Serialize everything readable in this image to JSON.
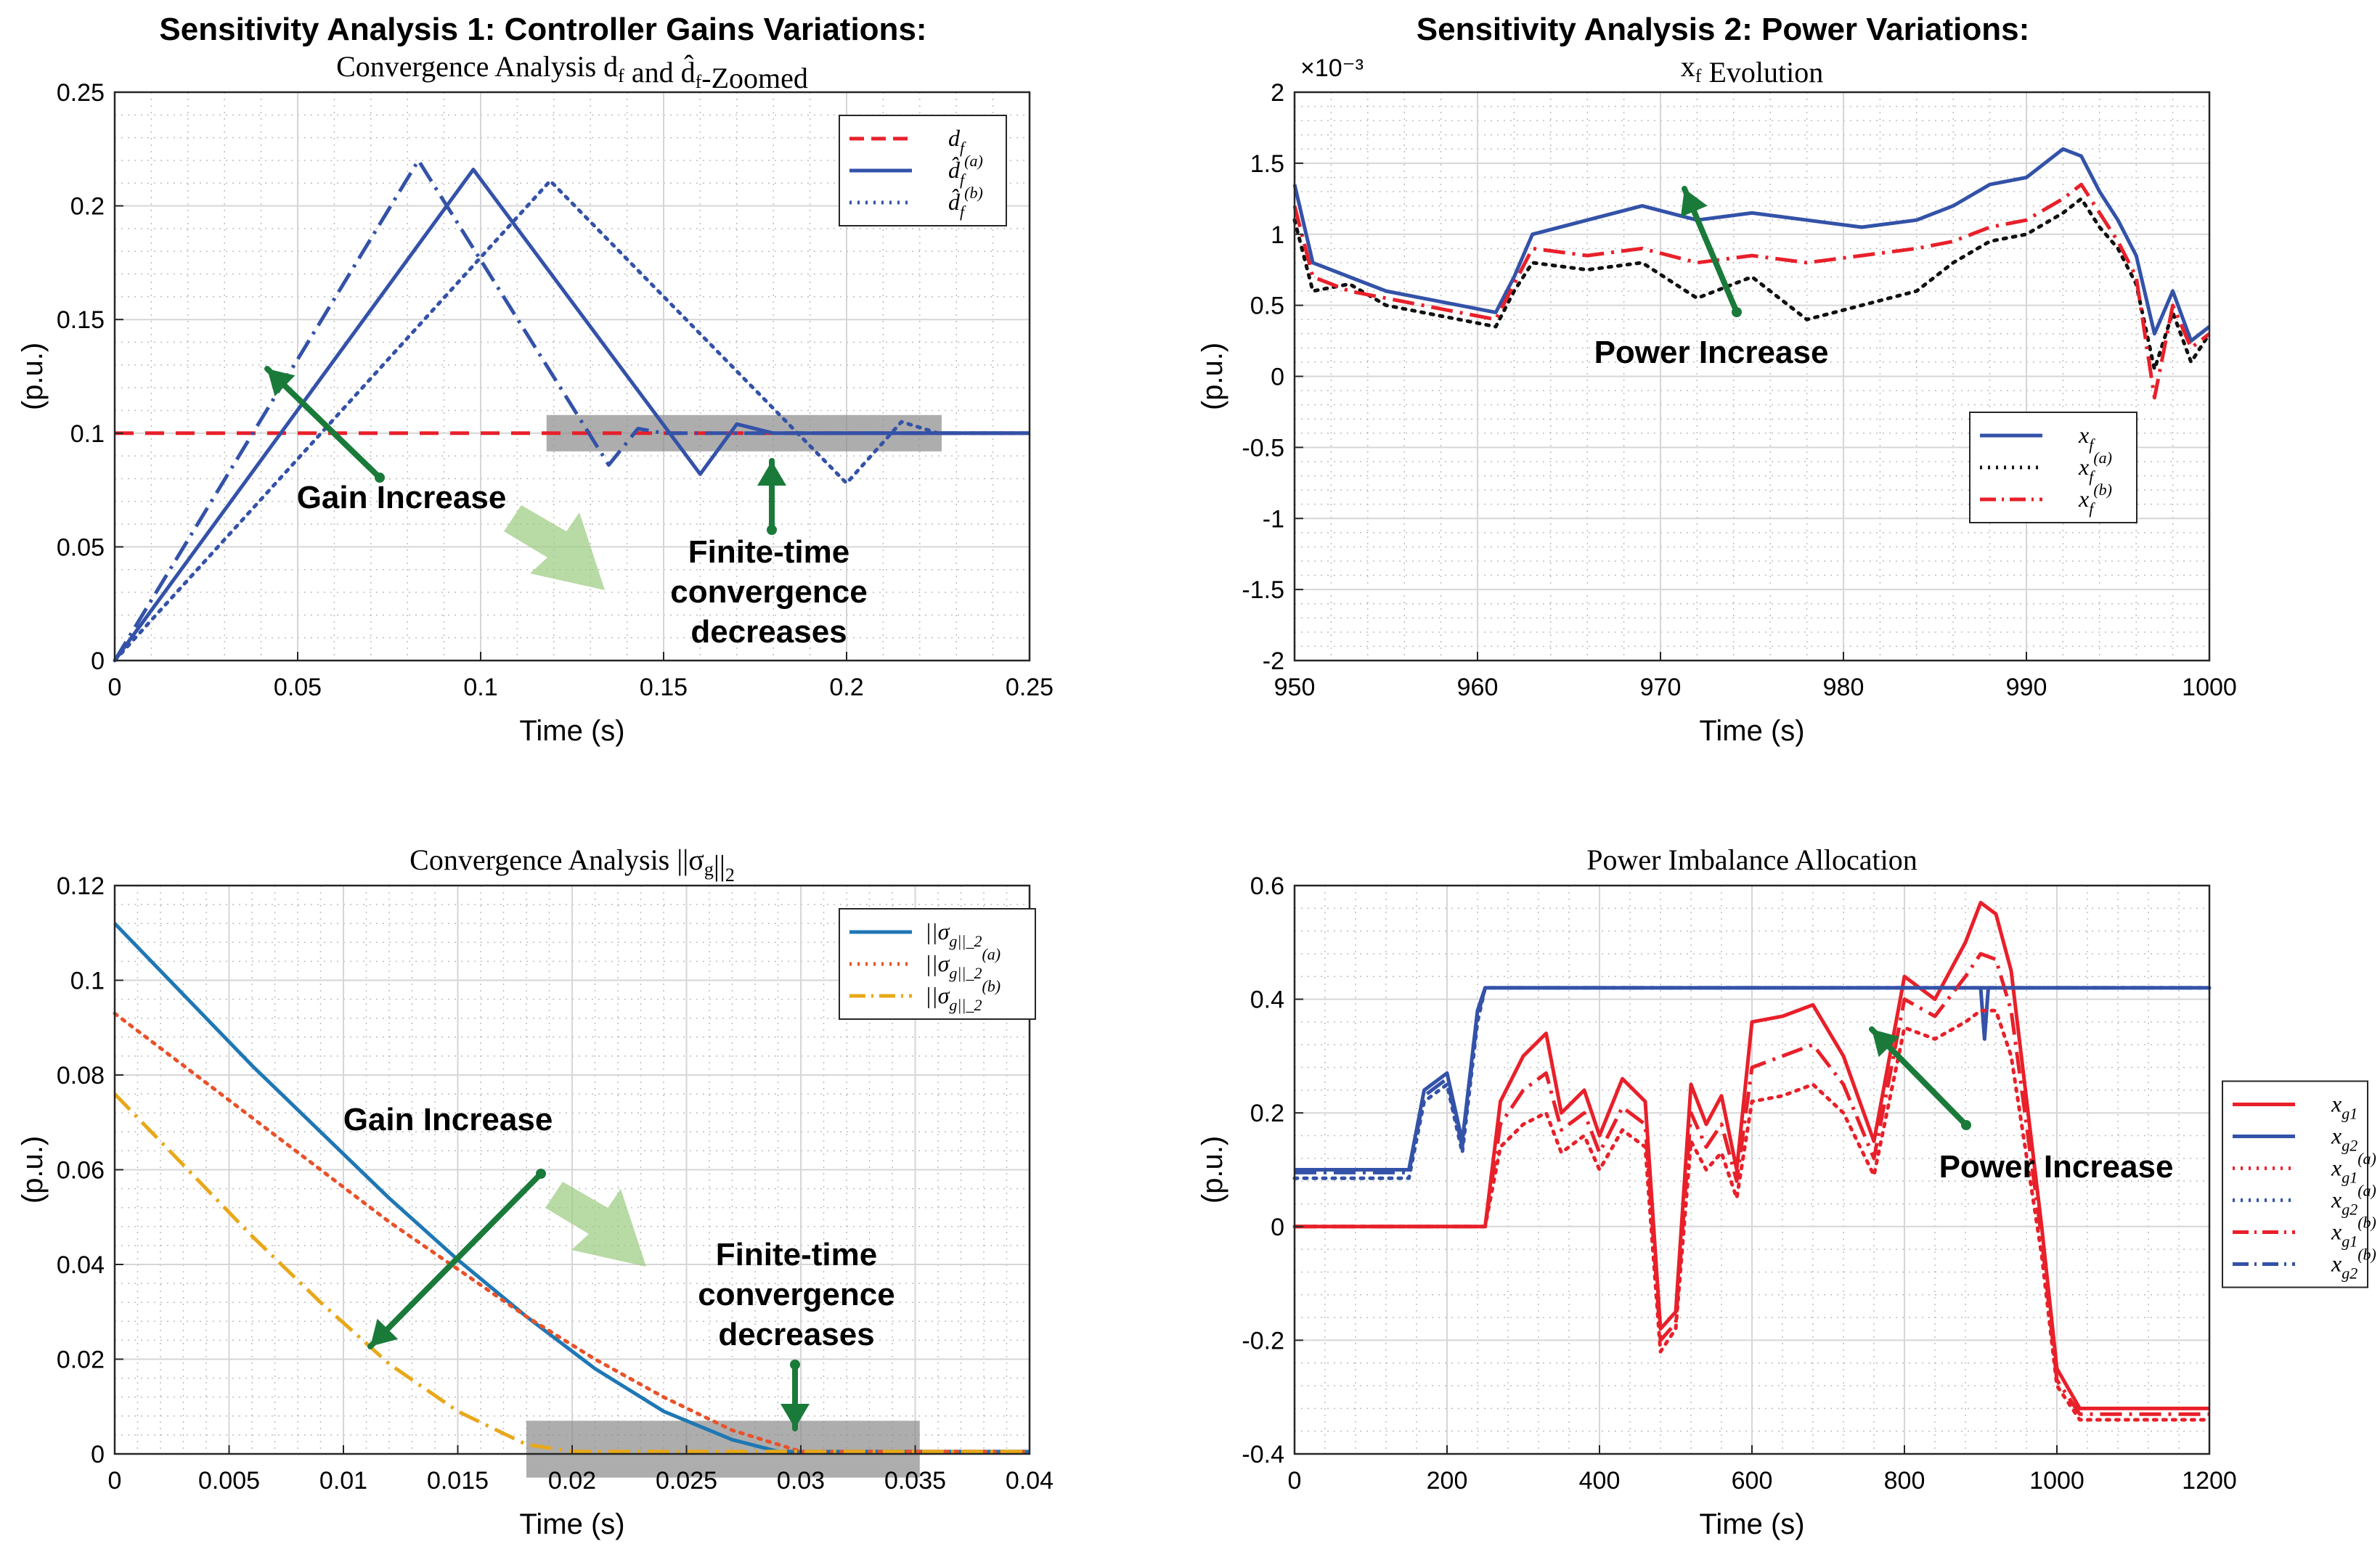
{
  "chart_data": [
    {
      "type": "line",
      "suptitle": "Sensitivity Analysis 1:  Controller Gains Variations:",
      "title": "Convergence Analysis d_f and d̂_f-Zoomed",
      "xlabel": "Time (s)",
      "ylabel": "(p.u.)",
      "xlim": [
        0,
        0.25
      ],
      "ylim": [
        0,
        0.25
      ],
      "xticks": [
        0,
        0.05,
        0.1,
        0.15,
        0.2,
        0.25
      ],
      "xticklabels": [
        "0",
        "0.05",
        "0.1",
        "0.15",
        "0.2",
        "0.25"
      ],
      "yticks": [
        0,
        0.05,
        0.1,
        0.15,
        0.2,
        0.25
      ],
      "yticklabels": [
        "0",
        "0.05",
        "0.1",
        "0.15",
        "0.2",
        "0.25"
      ],
      "grid": true,
      "legend_position": "top-right",
      "series": [
        {
          "name": "d_f",
          "color": "#e8202a",
          "style": "dashed",
          "x": [
            0,
            0.25
          ],
          "y": [
            0.1,
            0.1
          ]
        },
        {
          "name": "d̂_f^(a)",
          "color": "#3352a8",
          "style": "solid",
          "x": [
            0,
            0.098,
            0.16,
            0.17,
            0.18,
            0.25
          ],
          "y": [
            0,
            0.216,
            0.082,
            0.104,
            0.1,
            0.1
          ]
        },
        {
          "name": "d̂_f^(b)",
          "color": "#3352a8",
          "style": "dotted",
          "x": [
            0,
            0.119,
            0.2,
            0.215,
            0.225,
            0.25
          ],
          "y": [
            0,
            0.211,
            0.078,
            0.105,
            0.1,
            0.1
          ]
        },
        {
          "name": "",
          "color": "#3352a8",
          "style": "dashdot",
          "x": [
            0,
            0.083,
            0.135,
            0.143,
            0.15,
            0.25
          ],
          "y": [
            0,
            0.22,
            0.086,
            0.102,
            0.1,
            0.1
          ]
        }
      ],
      "annotations": {
        "gain": "Gain Increase",
        "finite_l1": "Finite-time",
        "finite_l2": "convergence",
        "finite_l3": "decreases"
      }
    },
    {
      "type": "line",
      "suptitle": "Sensitivity Analysis 2:  Power Variations:",
      "title": "x_f Evolution",
      "xlabel": "Time (s)",
      "ylabel": "(p.u.)",
      "scale_label": "×10⁻³",
      "xlim": [
        950,
        1000
      ],
      "ylim": [
        -2,
        2
      ],
      "xticks": [
        950,
        960,
        970,
        980,
        990,
        1000
      ],
      "xticklabels": [
        "950",
        "960",
        "970",
        "980",
        "990",
        "1000"
      ],
      "yticks": [
        -2,
        -1.5,
        -1,
        -0.5,
        0,
        0.5,
        1,
        1.5,
        2
      ],
      "yticklabels": [
        "-2",
        "-1.5",
        "-1",
        "-0.5",
        "0",
        "0.5",
        "1",
        "1.5",
        "2"
      ],
      "grid": true,
      "legend_position": "lower-right",
      "series": [
        {
          "name": "x_f",
          "color": "#3352a8",
          "style": "solid",
          "x": [
            950,
            951,
            953,
            955,
            957,
            959,
            961,
            962,
            963,
            966,
            969,
            972,
            975,
            978,
            981,
            984,
            986,
            988,
            990,
            992,
            993,
            994,
            995,
            996,
            997,
            998,
            999,
            1000
          ],
          "y": [
            1.35,
            0.8,
            0.7,
            0.6,
            0.55,
            0.5,
            0.45,
            0.7,
            1.0,
            1.1,
            1.2,
            1.1,
            1.15,
            1.1,
            1.05,
            1.1,
            1.2,
            1.35,
            1.4,
            1.6,
            1.55,
            1.3,
            1.1,
            0.85,
            0.3,
            0.6,
            0.25,
            0.35
          ]
        },
        {
          "name": "x_f^(a)",
          "color": "#111111",
          "style": "dotted",
          "x": [
            950,
            951,
            953,
            955,
            957,
            959,
            961,
            962,
            963,
            966,
            969,
            972,
            975,
            978,
            981,
            984,
            986,
            988,
            990,
            992,
            993,
            994,
            995,
            996,
            997,
            998,
            999,
            1000
          ],
          "y": [
            1.1,
            0.6,
            0.65,
            0.5,
            0.45,
            0.4,
            0.35,
            0.6,
            0.8,
            0.75,
            0.8,
            0.55,
            0.7,
            0.4,
            0.5,
            0.6,
            0.8,
            0.95,
            1.0,
            1.15,
            1.25,
            1.05,
            0.9,
            0.65,
            0.05,
            0.45,
            0.1,
            0.3
          ]
        },
        {
          "name": "x_f^(b)",
          "color": "#e8202a",
          "style": "dashdot",
          "x": [
            950,
            951,
            953,
            955,
            957,
            959,
            961,
            962,
            963,
            966,
            969,
            972,
            975,
            978,
            981,
            984,
            986,
            988,
            990,
            992,
            993,
            994,
            995,
            996,
            997,
            998,
            999,
            1000
          ],
          "y": [
            1.2,
            0.7,
            0.6,
            0.55,
            0.5,
            0.45,
            0.4,
            0.65,
            0.9,
            0.85,
            0.9,
            0.8,
            0.85,
            0.8,
            0.85,
            0.9,
            0.95,
            1.05,
            1.1,
            1.25,
            1.35,
            1.15,
            0.95,
            0.7,
            -0.15,
            0.5,
            0.2,
            0.3
          ]
        }
      ],
      "annotations": {
        "power": "Power Increase"
      }
    },
    {
      "type": "line",
      "title": "Convergence Analysis ||σ_g||_2",
      "xlabel": "Time (s)",
      "ylabel": "(p.u.)",
      "xlim": [
        0,
        0.04
      ],
      "ylim": [
        0,
        0.12
      ],
      "xticks": [
        0,
        0.005,
        0.01,
        0.015,
        0.02,
        0.025,
        0.03,
        0.035,
        0.04
      ],
      "xticklabels": [
        "0",
        "0.005",
        "0.01",
        "0.015",
        "0.02",
        "0.025",
        "0.03",
        "0.035",
        "0.04"
      ],
      "yticks": [
        0,
        0.02,
        0.04,
        0.06,
        0.08,
        0.1,
        0.12
      ],
      "yticklabels": [
        "0",
        "0.02",
        "0.04",
        "0.06",
        "0.08",
        "0.1",
        "0.12"
      ],
      "grid": true,
      "legend_position": "top-right",
      "series": [
        {
          "name": "||σ_g||_2",
          "color": "#1f77b4",
          "style": "solid",
          "x": [
            0,
            0.003,
            0.006,
            0.009,
            0.012,
            0.015,
            0.018,
            0.021,
            0.024,
            0.027,
            0.029,
            0.04
          ],
          "y": [
            0.112,
            0.097,
            0.082,
            0.068,
            0.054,
            0.041,
            0.029,
            0.018,
            0.009,
            0.003,
            0.0005,
            0.0005
          ]
        },
        {
          "name": "||σ_g||_2^(a)",
          "color": "#e8522a",
          "style": "dotted",
          "x": [
            0,
            0.003,
            0.006,
            0.009,
            0.012,
            0.015,
            0.018,
            0.021,
            0.024,
            0.027,
            0.03,
            0.04
          ],
          "y": [
            0.093,
            0.082,
            0.071,
            0.06,
            0.049,
            0.039,
            0.029,
            0.02,
            0.012,
            0.005,
            0.0005,
            0.0005
          ]
        },
        {
          "name": "||σ_g||_2^(b)",
          "color": "#e8a81a",
          "style": "dashdot",
          "x": [
            0,
            0.003,
            0.006,
            0.009,
            0.012,
            0.015,
            0.018,
            0.02,
            0.04
          ],
          "y": [
            0.076,
            0.061,
            0.046,
            0.032,
            0.019,
            0.009,
            0.002,
            0.0005,
            0.0005
          ]
        }
      ],
      "annotations": {
        "gain": "Gain Increase",
        "finite_l1": "Finite-time",
        "finite_l2": "convergence",
        "finite_l3": "decreases"
      }
    },
    {
      "type": "line",
      "title": "Power Imbalance Allocation",
      "xlabel": "Time (s)",
      "ylabel": "(p.u.)",
      "xlim": [
        0,
        1200
      ],
      "ylim": [
        -0.4,
        0.6
      ],
      "xticks": [
        0,
        200,
        400,
        600,
        800,
        1000,
        1200
      ],
      "xticklabels": [
        "0",
        "200",
        "400",
        "600",
        "800",
        "1000",
        "1200"
      ],
      "yticks": [
        -0.4,
        -0.2,
        0,
        0.2,
        0.4,
        0.6
      ],
      "yticklabels": [
        "-0.4",
        "-0.2",
        "0",
        "0.2",
        "0.4",
        "0.6"
      ],
      "grid": true,
      "legend_position": "outside-right",
      "series": [
        {
          "name": "x_g1",
          "color": "#e8202a",
          "style": "solid",
          "x": [
            0,
            250,
            270,
            300,
            330,
            350,
            380,
            400,
            430,
            460,
            480,
            500,
            520,
            540,
            560,
            580,
            600,
            640,
            680,
            720,
            760,
            800,
            840,
            880,
            900,
            920,
            940,
            980,
            1000,
            1030,
            1200
          ],
          "y": [
            0,
            0,
            0.22,
            0.3,
            0.34,
            0.2,
            0.24,
            0.16,
            0.26,
            0.22,
            -0.18,
            -0.15,
            0.25,
            0.18,
            0.23,
            0.1,
            0.36,
            0.37,
            0.39,
            0.3,
            0.15,
            0.44,
            0.4,
            0.5,
            0.57,
            0.55,
            0.45,
            0.0,
            -0.25,
            -0.32,
            -0.32
          ]
        },
        {
          "name": "x_g2",
          "color": "#3352a8",
          "style": "solid",
          "x": [
            0,
            150,
            170,
            200,
            220,
            240,
            250,
            900,
            905,
            910,
            1200
          ],
          "y": [
            0.1,
            0.1,
            0.24,
            0.27,
            0.15,
            0.38,
            0.42,
            0.42,
            0.33,
            0.42,
            0.42
          ]
        },
        {
          "name": "x_g1^(a)",
          "color": "#e8202a",
          "style": "dotted",
          "x": [
            0,
            250,
            270,
            300,
            330,
            350,
            380,
            400,
            430,
            460,
            480,
            500,
            520,
            540,
            560,
            580,
            600,
            640,
            680,
            720,
            760,
            800,
            840,
            880,
            900,
            920,
            940,
            980,
            1000,
            1030,
            1200
          ],
          "y": [
            0,
            0,
            0.14,
            0.18,
            0.2,
            0.13,
            0.16,
            0.1,
            0.17,
            0.14,
            -0.22,
            -0.18,
            0.15,
            0.1,
            0.13,
            0.05,
            0.22,
            0.23,
            0.25,
            0.2,
            0.09,
            0.35,
            0.33,
            0.36,
            0.38,
            0.38,
            0.3,
            -0.05,
            -0.28,
            -0.34,
            -0.34
          ]
        },
        {
          "name": "x_g2^(a)",
          "color": "#3352a8",
          "style": "dotted",
          "x": [
            0,
            150,
            170,
            200,
            220,
            240,
            250,
            900,
            1200
          ],
          "y": [
            0.085,
            0.085,
            0.22,
            0.25,
            0.13,
            0.36,
            0.42,
            0.42,
            0.42
          ]
        },
        {
          "name": "x_g1^(b)",
          "color": "#e8202a",
          "style": "dashdot",
          "x": [
            0,
            250,
            270,
            300,
            330,
            350,
            380,
            400,
            430,
            460,
            480,
            500,
            520,
            540,
            560,
            580,
            600,
            640,
            680,
            720,
            760,
            800,
            840,
            880,
            900,
            920,
            940,
            980,
            1000,
            1030,
            1200
          ],
          "y": [
            0,
            0,
            0.18,
            0.24,
            0.27,
            0.17,
            0.2,
            0.13,
            0.21,
            0.18,
            -0.2,
            -0.17,
            0.2,
            0.14,
            0.18,
            0.08,
            0.28,
            0.3,
            0.32,
            0.25,
            0.12,
            0.4,
            0.37,
            0.44,
            0.48,
            0.47,
            0.38,
            -0.02,
            -0.27,
            -0.33,
            -0.33
          ]
        },
        {
          "name": "x_g2^(b)",
          "color": "#3352a8",
          "style": "dashdot",
          "x": [
            0,
            150,
            170,
            200,
            220,
            240,
            250,
            900,
            1200
          ],
          "y": [
            0.095,
            0.095,
            0.23,
            0.26,
            0.14,
            0.37,
            0.42,
            0.42,
            0.42
          ]
        }
      ],
      "annotations": {
        "power": "Power Increase"
      }
    }
  ]
}
